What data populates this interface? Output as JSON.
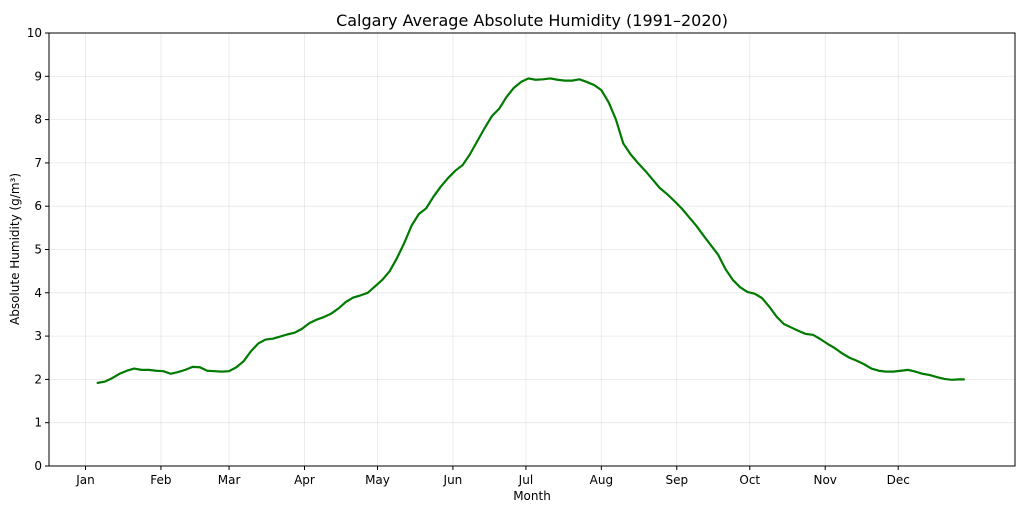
{
  "chart_data": {
    "type": "line",
    "title": "Calgary Average Absolute Humidity (1991–2020)",
    "xlabel": "Month",
    "ylabel": "Absolute Humidity (g/m³)",
    "ylim": [
      0,
      10
    ],
    "yticks": [
      0,
      1,
      2,
      3,
      4,
      5,
      6,
      7,
      8,
      9,
      10
    ],
    "xlim_day": [
      -14,
      383
    ],
    "month_ticks": [
      {
        "label": "Jan",
        "day": 1
      },
      {
        "label": "Feb",
        "day": 32
      },
      {
        "label": "Mar",
        "day": 60
      },
      {
        "label": "Apr",
        "day": 91
      },
      {
        "label": "May",
        "day": 121
      },
      {
        "label": "Jun",
        "day": 152
      },
      {
        "label": "Jul",
        "day": 182
      },
      {
        "label": "Aug",
        "day": 213
      },
      {
        "label": "Sep",
        "day": 244
      },
      {
        "label": "Oct",
        "day": 274
      },
      {
        "label": "Nov",
        "day": 305
      },
      {
        "label": "Dec",
        "day": 335
      }
    ],
    "grid": true,
    "legend": "none",
    "series": [
      {
        "color": "#007a00",
        "x_day": [
          6,
          9,
          12,
          15,
          18,
          21,
          24,
          27,
          30,
          33,
          36,
          39,
          42,
          45,
          48,
          51,
          54,
          57,
          60,
          63,
          66,
          69,
          72,
          75,
          78,
          81,
          84,
          87,
          90,
          93,
          96,
          99,
          102,
          105,
          108,
          111,
          114,
          117,
          120,
          123,
          126,
          129,
          132,
          135,
          138,
          141,
          144,
          147,
          150,
          153,
          156,
          159,
          162,
          165,
          168,
          171,
          174,
          177,
          180,
          183,
          186,
          189,
          192,
          195,
          198,
          201,
          204,
          207,
          210,
          213,
          216,
          219,
          222,
          225,
          228,
          231,
          234,
          237,
          240,
          243,
          246,
          249,
          252,
          255,
          258,
          261,
          264,
          267,
          270,
          273,
          276,
          279,
          282,
          285,
          288,
          291,
          294,
          297,
          300,
          303,
          306,
          309,
          312,
          315,
          318,
          321,
          324,
          327,
          330,
          333,
          336,
          339,
          342,
          345,
          348,
          351,
          354,
          357,
          360,
          362
        ],
        "values": [
          1.92,
          1.95,
          2.03,
          2.13,
          2.2,
          2.25,
          2.22,
          2.22,
          2.2,
          2.19,
          2.13,
          2.17,
          2.22,
          2.29,
          2.28,
          2.2,
          2.19,
          2.18,
          2.19,
          2.28,
          2.42,
          2.65,
          2.83,
          2.92,
          2.94,
          2.99,
          3.04,
          3.08,
          3.17,
          3.3,
          3.38,
          3.44,
          3.52,
          3.64,
          3.79,
          3.89,
          3.94,
          4.0,
          4.15,
          4.3,
          4.5,
          4.8,
          5.15,
          5.55,
          5.82,
          5.95,
          6.22,
          6.45,
          6.65,
          6.82,
          6.95,
          7.2,
          7.5,
          7.8,
          8.08,
          8.25,
          8.52,
          8.73,
          8.87,
          8.95,
          8.92,
          8.93,
          8.95,
          8.92,
          8.9,
          8.9,
          8.93,
          8.87,
          8.8,
          8.68,
          8.4,
          8.0,
          7.45,
          7.2,
          7.0,
          6.82,
          6.62,
          6.42,
          6.28,
          6.12,
          5.95,
          5.75,
          5.55,
          5.32,
          5.1,
          4.88,
          4.55,
          4.3,
          4.13,
          4.02,
          3.98,
          3.88,
          3.68,
          3.45,
          3.28,
          3.2,
          3.12,
          3.05,
          3.03,
          2.93,
          2.82,
          2.72,
          2.6,
          2.5,
          2.43,
          2.35,
          2.25,
          2.2,
          2.18,
          2.18,
          2.2,
          2.22,
          2.18,
          2.13,
          2.1,
          2.05,
          2.01,
          1.99,
          2.0,
          2.0
        ]
      }
    ]
  }
}
